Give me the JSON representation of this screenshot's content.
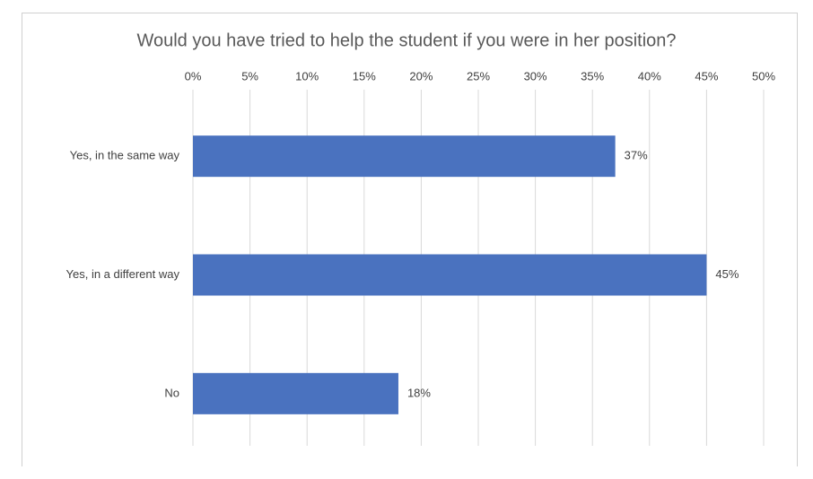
{
  "chart_data": {
    "type": "hbar",
    "title": "Would you have tried to help the student if you were in her position?",
    "categories": [
      "Yes, in the same way",
      "Yes, in a different way",
      "No"
    ],
    "values": [
      37,
      45,
      18
    ],
    "value_labels": [
      "37%",
      "45%",
      "18%"
    ],
    "color": "#4a72bf",
    "xlim": [
      0,
      50
    ],
    "xticks": [
      {
        "value": 0,
        "label": "0%"
      },
      {
        "value": 5,
        "label": "5%"
      },
      {
        "value": 10,
        "label": "10%"
      },
      {
        "value": 15,
        "label": "15%"
      },
      {
        "value": 20,
        "label": "20%"
      },
      {
        "value": 25,
        "label": "25%"
      },
      {
        "value": 30,
        "label": "30%"
      },
      {
        "value": 35,
        "label": "35%"
      },
      {
        "value": 40,
        "label": "40%"
      },
      {
        "value": 45,
        "label": "45%"
      },
      {
        "value": 50,
        "label": "50%"
      }
    ],
    "grid": true
  }
}
